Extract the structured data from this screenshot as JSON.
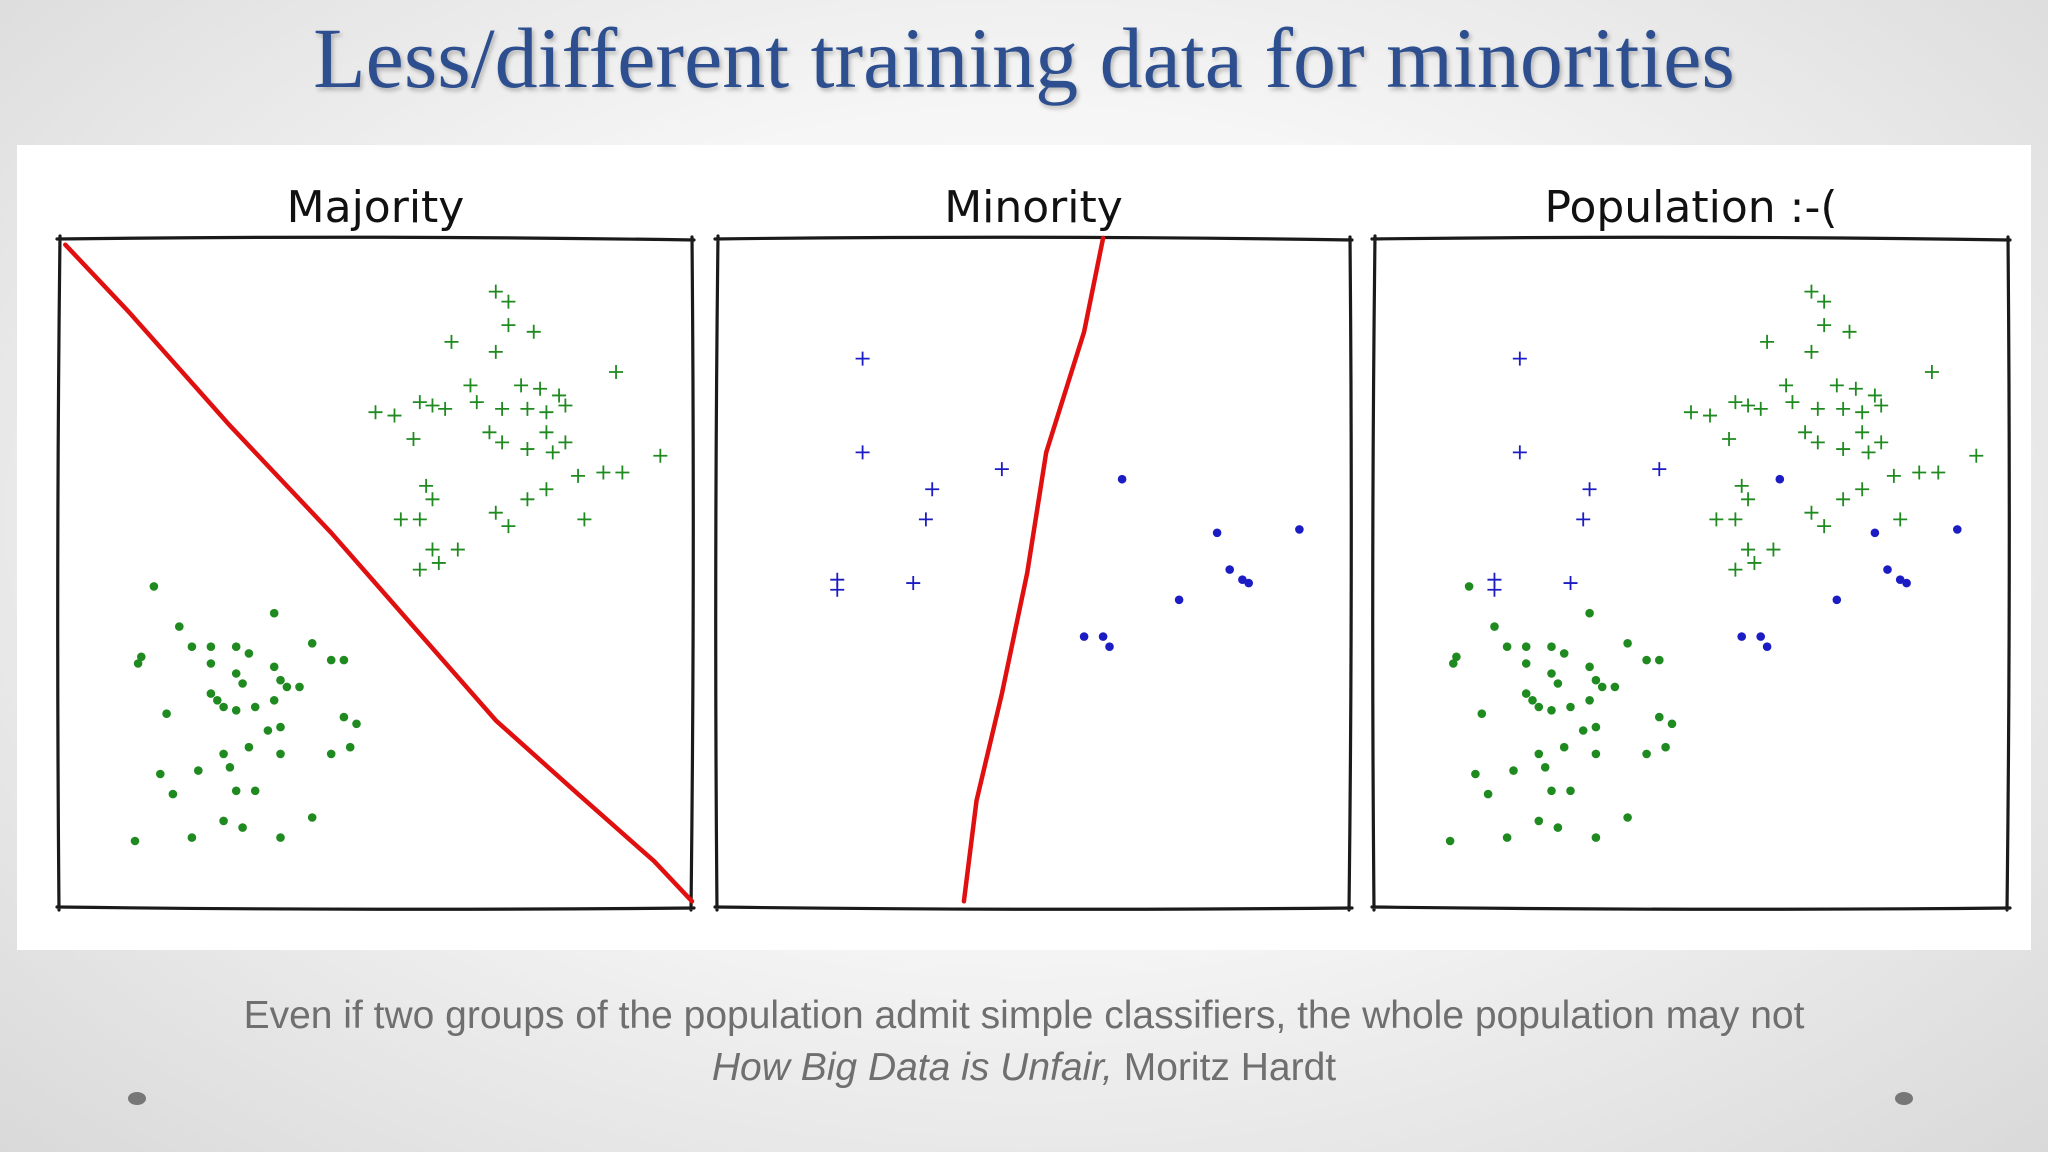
{
  "slide": {
    "title": "Less/different training data for minorities",
    "caption_line1": "Even if two groups of the population admit simple classifiers, the whole population may not",
    "citation_title": "How Big Data is Unfair,",
    "citation_author": "Moritz Hardt"
  },
  "colors": {
    "title": "#2e4f8f",
    "majority_points": "#1f8a1f",
    "minority_points": "#1c1cc4",
    "boundary": "#e01010",
    "caption": "#6f6f6f"
  },
  "chart_data": [
    {
      "type": "scatter",
      "title": "Majority",
      "xlim": [
        0,
        10
      ],
      "ylim": [
        0,
        10
      ],
      "series": [
        {
          "marker": "plus",
          "color": "#1f8a1f",
          "points": [
            [
              6.9,
              9.2
            ],
            [
              7.1,
              9.05
            ],
            [
              6.2,
              8.45
            ],
            [
              6.9,
              8.3
            ],
            [
              7.5,
              8.6
            ],
            [
              7.1,
              8.7
            ],
            [
              8.8,
              8.0
            ],
            [
              6.5,
              7.8
            ],
            [
              7.3,
              7.8
            ],
            [
              7.6,
              7.75
            ],
            [
              7.9,
              7.65
            ],
            [
              8.0,
              7.5
            ],
            [
              5.0,
              7.4
            ],
            [
              5.3,
              7.35
            ],
            [
              5.7,
              7.55
            ],
            [
              5.9,
              7.5
            ],
            [
              6.1,
              7.45
            ],
            [
              6.6,
              7.55
            ],
            [
              7.0,
              7.45
            ],
            [
              7.4,
              7.45
            ],
            [
              7.7,
              7.4
            ],
            [
              6.8,
              7.1
            ],
            [
              7.0,
              6.95
            ],
            [
              7.7,
              7.1
            ],
            [
              8.0,
              6.95
            ],
            [
              7.4,
              6.85
            ],
            [
              7.8,
              6.8
            ],
            [
              5.6,
              7.0
            ],
            [
              9.5,
              6.75
            ],
            [
              8.2,
              6.45
            ],
            [
              8.6,
              6.5
            ],
            [
              8.9,
              6.5
            ],
            [
              5.8,
              6.3
            ],
            [
              5.9,
              6.1
            ],
            [
              7.4,
              6.1
            ],
            [
              7.7,
              6.25
            ],
            [
              5.4,
              5.8
            ],
            [
              5.7,
              5.8
            ],
            [
              6.9,
              5.9
            ],
            [
              7.1,
              5.7
            ],
            [
              8.3,
              5.8
            ],
            [
              5.9,
              5.35
            ],
            [
              6.0,
              5.15
            ],
            [
              6.3,
              5.35
            ],
            [
              5.7,
              5.05
            ]
          ]
        },
        {
          "marker": "dot",
          "color": "#1f8a1f",
          "points": [
            [
              1.5,
              4.8
            ],
            [
              3.4,
              4.4
            ],
            [
              1.9,
              4.2
            ],
            [
              2.1,
              3.9
            ],
            [
              2.4,
              3.9
            ],
            [
              2.8,
              3.9
            ],
            [
              3.0,
              3.8
            ],
            [
              4.0,
              3.95
            ],
            [
              4.3,
              3.7
            ],
            [
              4.5,
              3.7
            ],
            [
              1.3,
              3.75
            ],
            [
              1.25,
              3.65
            ],
            [
              3.4,
              3.6
            ],
            [
              2.4,
              3.65
            ],
            [
              2.8,
              3.5
            ],
            [
              2.9,
              3.35
            ],
            [
              2.4,
              3.2
            ],
            [
              2.5,
              3.1
            ],
            [
              3.5,
              3.4
            ],
            [
              3.6,
              3.3
            ],
            [
              3.8,
              3.3
            ],
            [
              1.7,
              2.9
            ],
            [
              2.6,
              3.0
            ],
            [
              2.8,
              2.95
            ],
            [
              3.1,
              3.0
            ],
            [
              3.4,
              3.1
            ],
            [
              4.5,
              2.85
            ],
            [
              4.7,
              2.75
            ],
            [
              3.3,
              2.65
            ],
            [
              3.5,
              2.7
            ],
            [
              2.6,
              2.3
            ],
            [
              3.0,
              2.4
            ],
            [
              3.5,
              2.3
            ],
            [
              4.3,
              2.3
            ],
            [
              4.6,
              2.4
            ],
            [
              1.6,
              2.0
            ],
            [
              2.2,
              2.05
            ],
            [
              2.7,
              2.1
            ],
            [
              1.8,
              1.7
            ],
            [
              2.8,
              1.75
            ],
            [
              3.1,
              1.75
            ],
            [
              2.6,
              1.3
            ],
            [
              2.9,
              1.2
            ],
            [
              4.0,
              1.35
            ],
            [
              1.2,
              1.0
            ],
            [
              2.1,
              1.05
            ],
            [
              3.5,
              1.05
            ]
          ]
        },
        {
          "type": "line",
          "color": "#e01010",
          "points": [
            [
              0.1,
              9.9
            ],
            [
              1.1,
              8.9
            ],
            [
              2.7,
              7.2
            ],
            [
              4.3,
              5.6
            ],
            [
              5.6,
              4.2
            ],
            [
              6.9,
              2.8
            ],
            [
              8.2,
              1.7
            ],
            [
              9.4,
              0.7
            ],
            [
              10.0,
              0.1
            ]
          ]
        }
      ]
    },
    {
      "type": "scatter",
      "title": "Minority",
      "xlim": [
        0,
        10
      ],
      "ylim": [
        0,
        10
      ],
      "series": [
        {
          "marker": "plus",
          "color": "#1c1cc4",
          "points": [
            [
              2.3,
              8.2
            ],
            [
              2.3,
              6.8
            ],
            [
              3.4,
              6.25
            ],
            [
              4.5,
              6.55
            ],
            [
              3.3,
              5.8
            ],
            [
              1.9,
              4.9
            ],
            [
              1.9,
              4.75
            ],
            [
              3.1,
              4.85
            ]
          ]
        },
        {
          "marker": "dot",
          "color": "#1c1cc4",
          "points": [
            [
              6.4,
              6.4
            ],
            [
              7.9,
              5.6
            ],
            [
              9.2,
              5.65
            ],
            [
              8.1,
              5.05
            ],
            [
              8.3,
              4.9
            ],
            [
              8.4,
              4.85
            ],
            [
              7.3,
              4.6
            ],
            [
              5.8,
              4.05
            ],
            [
              6.1,
              4.05
            ],
            [
              6.2,
              3.9
            ]
          ]
        },
        {
          "type": "line",
          "color": "#e01010",
          "points": [
            [
              6.1,
              10.0
            ],
            [
              5.8,
              8.6
            ],
            [
              5.2,
              6.8
            ],
            [
              4.9,
              5.0
            ],
            [
              4.5,
              3.2
            ],
            [
              4.1,
              1.6
            ],
            [
              3.9,
              0.1
            ]
          ]
        }
      ]
    },
    {
      "type": "scatter",
      "title": "Population :-(",
      "xlim": [
        0,
        10
      ],
      "ylim": [
        0,
        10
      ],
      "series": [
        {
          "marker": "plus",
          "color": "#1f8a1f",
          "points": [
            [
              6.9,
              9.2
            ],
            [
              7.1,
              9.05
            ],
            [
              6.2,
              8.45
            ],
            [
              6.9,
              8.3
            ],
            [
              7.5,
              8.6
            ],
            [
              7.1,
              8.7
            ],
            [
              8.8,
              8.0
            ],
            [
              6.5,
              7.8
            ],
            [
              7.3,
              7.8
            ],
            [
              7.6,
              7.75
            ],
            [
              7.9,
              7.65
            ],
            [
              8.0,
              7.5
            ],
            [
              5.0,
              7.4
            ],
            [
              5.3,
              7.35
            ],
            [
              5.7,
              7.55
            ],
            [
              5.9,
              7.5
            ],
            [
              6.1,
              7.45
            ],
            [
              6.6,
              7.55
            ],
            [
              7.0,
              7.45
            ],
            [
              7.4,
              7.45
            ],
            [
              7.7,
              7.4
            ],
            [
              6.8,
              7.1
            ],
            [
              7.0,
              6.95
            ],
            [
              7.7,
              7.1
            ],
            [
              8.0,
              6.95
            ],
            [
              7.4,
              6.85
            ],
            [
              7.8,
              6.8
            ],
            [
              5.6,
              7.0
            ],
            [
              9.5,
              6.75
            ],
            [
              8.2,
              6.45
            ],
            [
              8.6,
              6.5
            ],
            [
              8.9,
              6.5
            ],
            [
              5.8,
              6.3
            ],
            [
              5.9,
              6.1
            ],
            [
              7.4,
              6.1
            ],
            [
              7.7,
              6.25
            ],
            [
              5.4,
              5.8
            ],
            [
              5.7,
              5.8
            ],
            [
              6.9,
              5.9
            ],
            [
              7.1,
              5.7
            ],
            [
              8.3,
              5.8
            ],
            [
              5.9,
              5.35
            ],
            [
              6.0,
              5.15
            ],
            [
              6.3,
              5.35
            ],
            [
              5.7,
              5.05
            ]
          ]
        },
        {
          "marker": "dot",
          "color": "#1f8a1f",
          "points": [
            [
              1.5,
              4.8
            ],
            [
              3.4,
              4.4
            ],
            [
              1.9,
              4.2
            ],
            [
              2.1,
              3.9
            ],
            [
              2.4,
              3.9
            ],
            [
              2.8,
              3.9
            ],
            [
              3.0,
              3.8
            ],
            [
              4.0,
              3.95
            ],
            [
              4.3,
              3.7
            ],
            [
              4.5,
              3.7
            ],
            [
              1.3,
              3.75
            ],
            [
              1.25,
              3.65
            ],
            [
              3.4,
              3.6
            ],
            [
              2.4,
              3.65
            ],
            [
              2.8,
              3.5
            ],
            [
              2.9,
              3.35
            ],
            [
              2.4,
              3.2
            ],
            [
              2.5,
              3.1
            ],
            [
              3.5,
              3.4
            ],
            [
              3.6,
              3.3
            ],
            [
              3.8,
              3.3
            ],
            [
              1.7,
              2.9
            ],
            [
              2.6,
              3.0
            ],
            [
              2.8,
              2.95
            ],
            [
              3.1,
              3.0
            ],
            [
              3.4,
              3.1
            ],
            [
              4.5,
              2.85
            ],
            [
              4.7,
              2.75
            ],
            [
              3.3,
              2.65
            ],
            [
              3.5,
              2.7
            ],
            [
              2.6,
              2.3
            ],
            [
              3.0,
              2.4
            ],
            [
              3.5,
              2.3
            ],
            [
              4.3,
              2.3
            ],
            [
              4.6,
              2.4
            ],
            [
              1.6,
              2.0
            ],
            [
              2.2,
              2.05
            ],
            [
              2.7,
              2.1
            ],
            [
              1.8,
              1.7
            ],
            [
              2.8,
              1.75
            ],
            [
              3.1,
              1.75
            ],
            [
              2.6,
              1.3
            ],
            [
              2.9,
              1.2
            ],
            [
              4.0,
              1.35
            ],
            [
              1.2,
              1.0
            ],
            [
              2.1,
              1.05
            ],
            [
              3.5,
              1.05
            ]
          ]
        },
        {
          "marker": "plus",
          "color": "#1c1cc4",
          "points": [
            [
              2.3,
              8.2
            ],
            [
              2.3,
              6.8
            ],
            [
              3.4,
              6.25
            ],
            [
              4.5,
              6.55
            ],
            [
              3.3,
              5.8
            ],
            [
              1.9,
              4.9
            ],
            [
              1.9,
              4.75
            ],
            [
              3.1,
              4.85
            ]
          ]
        },
        {
          "marker": "dot",
          "color": "#1c1cc4",
          "points": [
            [
              6.4,
              6.4
            ],
            [
              7.9,
              5.6
            ],
            [
              9.2,
              5.65
            ],
            [
              8.1,
              5.05
            ],
            [
              8.3,
              4.9
            ],
            [
              8.4,
              4.85
            ],
            [
              7.3,
              4.6
            ],
            [
              5.8,
              4.05
            ],
            [
              6.1,
              4.05
            ],
            [
              6.2,
              3.9
            ]
          ]
        }
      ]
    }
  ]
}
